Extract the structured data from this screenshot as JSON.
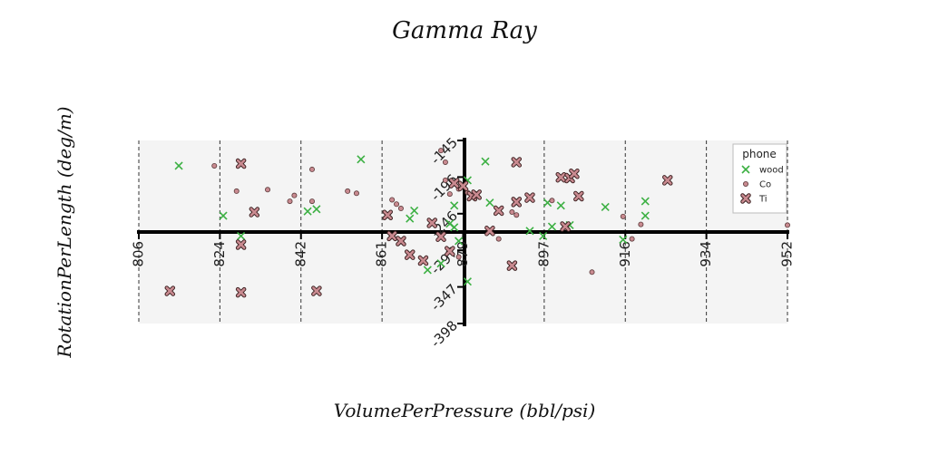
{
  "chart_data": {
    "type": "scatter",
    "title": "Gamma Ray",
    "xlabel": "VolumePerPressure (bbl/psi)",
    "ylabel": "RotationPerLength (deg/m)",
    "xlim": [
      806,
      952
    ],
    "ylim": [
      -398,
      -145
    ],
    "x_ticks": [
      "806",
      "824",
      "842",
      "861",
      "879",
      "897",
      "916",
      "934",
      "952"
    ],
    "y_ticks": [
      "-145",
      "-196",
      "-246",
      "-297",
      "-347",
      "-398"
    ],
    "grid": "vertical dashed",
    "legend": {
      "title": "phone",
      "placement": "top-right"
    },
    "colors": {
      "wood": "#3cb043",
      "Co": "#c98a90",
      "Ti": "#c98a90",
      "plot_bg": "#f4f4f4"
    },
    "series": [
      {
        "name": "wood",
        "marker": "x",
        "points": [
          [
            815,
            -180
          ],
          [
            825,
            -249
          ],
          [
            829,
            -277
          ],
          [
            856,
            -171
          ],
          [
            867,
            -253
          ],
          [
            868,
            -242
          ],
          [
            844,
            -243
          ],
          [
            846,
            -240
          ],
          [
            876,
            -260
          ],
          [
            877,
            -265
          ],
          [
            874,
            -315
          ],
          [
            880,
            -340
          ],
          [
            871,
            -324
          ],
          [
            878,
            -284
          ],
          [
            877,
            -235
          ],
          [
            880,
            -200
          ],
          [
            884,
            -174
          ],
          [
            885,
            -231
          ],
          [
            899,
            -264
          ],
          [
            903,
            -262
          ],
          [
            894,
            -270
          ],
          [
            897,
            -277
          ],
          [
            898,
            -231
          ],
          [
            901,
            -235
          ],
          [
            911,
            -237
          ],
          [
            915,
            -282
          ],
          [
            920,
            -249
          ],
          [
            920,
            -229
          ]
        ]
      },
      {
        "name": "Co",
        "marker": "o",
        "points": [
          [
            823,
            -180
          ],
          [
            828,
            -215
          ],
          [
            835,
            -213
          ],
          [
            840,
            -229
          ],
          [
            841,
            -221
          ],
          [
            845,
            -229
          ],
          [
            845,
            -185
          ],
          [
            853,
            -215
          ],
          [
            855,
            -218
          ],
          [
            863,
            -227
          ],
          [
            864,
            -233
          ],
          [
            865,
            -239
          ],
          [
            874,
            -159
          ],
          [
            875,
            -175
          ],
          [
            875,
            -200
          ],
          [
            876,
            -219
          ],
          [
            878,
            -306
          ],
          [
            878,
            -212
          ],
          [
            880,
            -217
          ],
          [
            887,
            -281
          ],
          [
            890,
            -244
          ],
          [
            891,
            -248
          ],
          [
            899,
            -228
          ],
          [
            908,
            -327
          ],
          [
            915,
            -250
          ],
          [
            917,
            -281
          ],
          [
            919,
            -261
          ],
          [
            945,
            -236
          ],
          [
            946,
            -237
          ],
          [
            953,
            -262
          ]
        ]
      },
      {
        "name": "Ti",
        "marker": "X",
        "points": [
          [
            813,
            -353
          ],
          [
            829,
            -177
          ],
          [
            829,
            -289
          ],
          [
            829,
            -355
          ],
          [
            832,
            -244
          ],
          [
            846,
            -353
          ],
          [
            862,
            -248
          ],
          [
            863,
            -277
          ],
          [
            865,
            -284
          ],
          [
            867,
            -303
          ],
          [
            870,
            -311
          ],
          [
            872,
            -259
          ],
          [
            874,
            -278
          ],
          [
            876,
            -298
          ],
          [
            877,
            -204
          ],
          [
            879,
            -208
          ],
          [
            881,
            -222
          ],
          [
            882,
            -220
          ],
          [
            885,
            -270
          ],
          [
            887,
            -242
          ],
          [
            890,
            -318
          ],
          [
            891,
            -175
          ],
          [
            891,
            -230
          ],
          [
            894,
            -224
          ],
          [
            901,
            -196
          ],
          [
            902,
            -264
          ],
          [
            903,
            -197
          ],
          [
            904,
            -191
          ],
          [
            905,
            -222
          ],
          [
            925,
            -200
          ]
        ]
      }
    ]
  }
}
